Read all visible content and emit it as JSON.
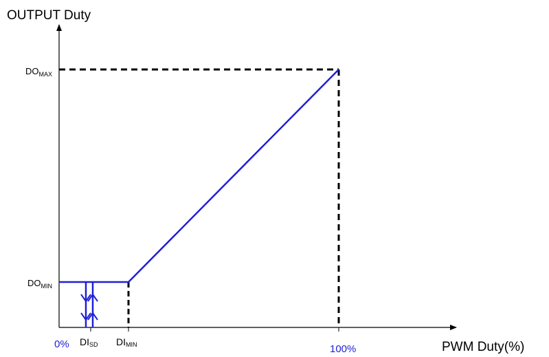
{
  "y_axis_title": "OUTPUT Duty",
  "x_axis_title": "PWM Duty(%)",
  "y_labels": {
    "do_max": {
      "main": "DO",
      "sub": "MAX"
    },
    "do_min": {
      "main": "DO",
      "sub": "MIN"
    }
  },
  "x_labels": {
    "zero": "0%",
    "di_sd": {
      "main": "DI",
      "sub": "SD"
    },
    "di_min": {
      "main": "DI",
      "sub": "MIN"
    },
    "hundred": "100%"
  },
  "colors": {
    "curve": "#1f1fd6",
    "axis": "#000000",
    "guide": "#000000",
    "blue_text": "#1f1fd6"
  }
}
